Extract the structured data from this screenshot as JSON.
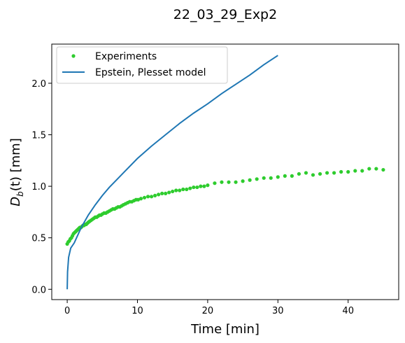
{
  "chart_data": {
    "type": "scatter",
    "title": "22_03_29_Exp2",
    "xlabel": "Time [min]",
    "ylabel_main": "D",
    "ylabel_sub": "b",
    "ylabel_rest": "(t) [mm]",
    "xlim": [
      -2.2,
      47.2
    ],
    "ylim": [
      -0.1,
      2.38
    ],
    "xticks": [
      0,
      10,
      20,
      30,
      40
    ],
    "xtick_labels": [
      "0",
      "10",
      "20",
      "30",
      "40"
    ],
    "yticks": [
      0.0,
      0.5,
      1.0,
      1.5,
      2.0
    ],
    "ytick_labels": [
      "0.0",
      "0.5",
      "1.0",
      "1.5",
      "2.0"
    ],
    "grid": false,
    "legend_position": "upper-left",
    "series": [
      {
        "name": "Experiments",
        "kind": "scatter",
        "color": "#2ecc2e",
        "x": [
          0.0,
          0.15,
          0.3,
          0.45,
          0.6,
          0.75,
          0.9,
          1.05,
          1.2,
          1.35,
          1.5,
          1.65,
          1.8,
          1.95,
          2.1,
          2.25,
          2.4,
          2.55,
          2.7,
          2.85,
          3.0,
          3.2,
          3.4,
          3.6,
          3.8,
          4.0,
          4.2,
          4.4,
          4.6,
          4.8,
          5.0,
          5.25,
          5.5,
          5.75,
          6.0,
          6.25,
          6.5,
          6.75,
          7.0,
          7.25,
          7.5,
          7.75,
          8.0,
          8.3,
          8.6,
          8.9,
          9.2,
          9.5,
          9.8,
          10.1,
          10.5,
          11.0,
          11.5,
          12.0,
          12.5,
          13.0,
          13.5,
          14.0,
          14.5,
          15.0,
          15.5,
          16.0,
          16.5,
          17.0,
          17.5,
          18.0,
          18.5,
          19.0,
          19.5,
          20.0,
          21.0,
          22.0,
          23.0,
          24.0,
          25.0,
          26.0,
          27.0,
          28.0,
          29.0,
          30.0,
          31.0,
          32.0,
          33.0,
          34.0,
          35.0,
          36.0,
          37.0,
          38.0,
          39.0,
          40.0,
          41.0,
          42.0,
          43.0,
          44.0,
          45.0
        ],
        "y": [
          0.44,
          0.46,
          0.47,
          0.49,
          0.5,
          0.52,
          0.54,
          0.55,
          0.56,
          0.57,
          0.58,
          0.59,
          0.6,
          0.6,
          0.61,
          0.62,
          0.62,
          0.63,
          0.63,
          0.64,
          0.65,
          0.66,
          0.67,
          0.68,
          0.69,
          0.7,
          0.7,
          0.71,
          0.72,
          0.72,
          0.73,
          0.74,
          0.74,
          0.75,
          0.76,
          0.77,
          0.78,
          0.78,
          0.79,
          0.8,
          0.8,
          0.81,
          0.82,
          0.83,
          0.84,
          0.85,
          0.85,
          0.86,
          0.87,
          0.87,
          0.88,
          0.89,
          0.9,
          0.9,
          0.91,
          0.92,
          0.93,
          0.93,
          0.94,
          0.95,
          0.96,
          0.96,
          0.97,
          0.97,
          0.98,
          0.99,
          0.99,
          1.0,
          1.0,
          1.01,
          1.03,
          1.04,
          1.04,
          1.04,
          1.05,
          1.06,
          1.07,
          1.08,
          1.08,
          1.09,
          1.1,
          1.1,
          1.12,
          1.13,
          1.11,
          1.12,
          1.13,
          1.13,
          1.14,
          1.14,
          1.15,
          1.15,
          1.17,
          1.17,
          1.16
        ]
      },
      {
        "name": "Epstein, Plesset model",
        "kind": "line",
        "color": "#1f77b4",
        "x": [
          0.0,
          0.05,
          0.2,
          0.5,
          1.0,
          2.0,
          3.0,
          4.0,
          5.0,
          6.0,
          8.0,
          10.0,
          12.0,
          14.0,
          16.0,
          18.0,
          20.0,
          22.0,
          24.0,
          26.0,
          28.0,
          30.0
        ],
        "y": [
          0.0,
          0.17,
          0.31,
          0.4,
          0.45,
          0.6,
          0.72,
          0.82,
          0.91,
          0.99,
          1.13,
          1.27,
          1.39,
          1.5,
          1.61,
          1.71,
          1.8,
          1.9,
          1.99,
          2.08,
          2.18,
          2.27
        ]
      }
    ]
  }
}
